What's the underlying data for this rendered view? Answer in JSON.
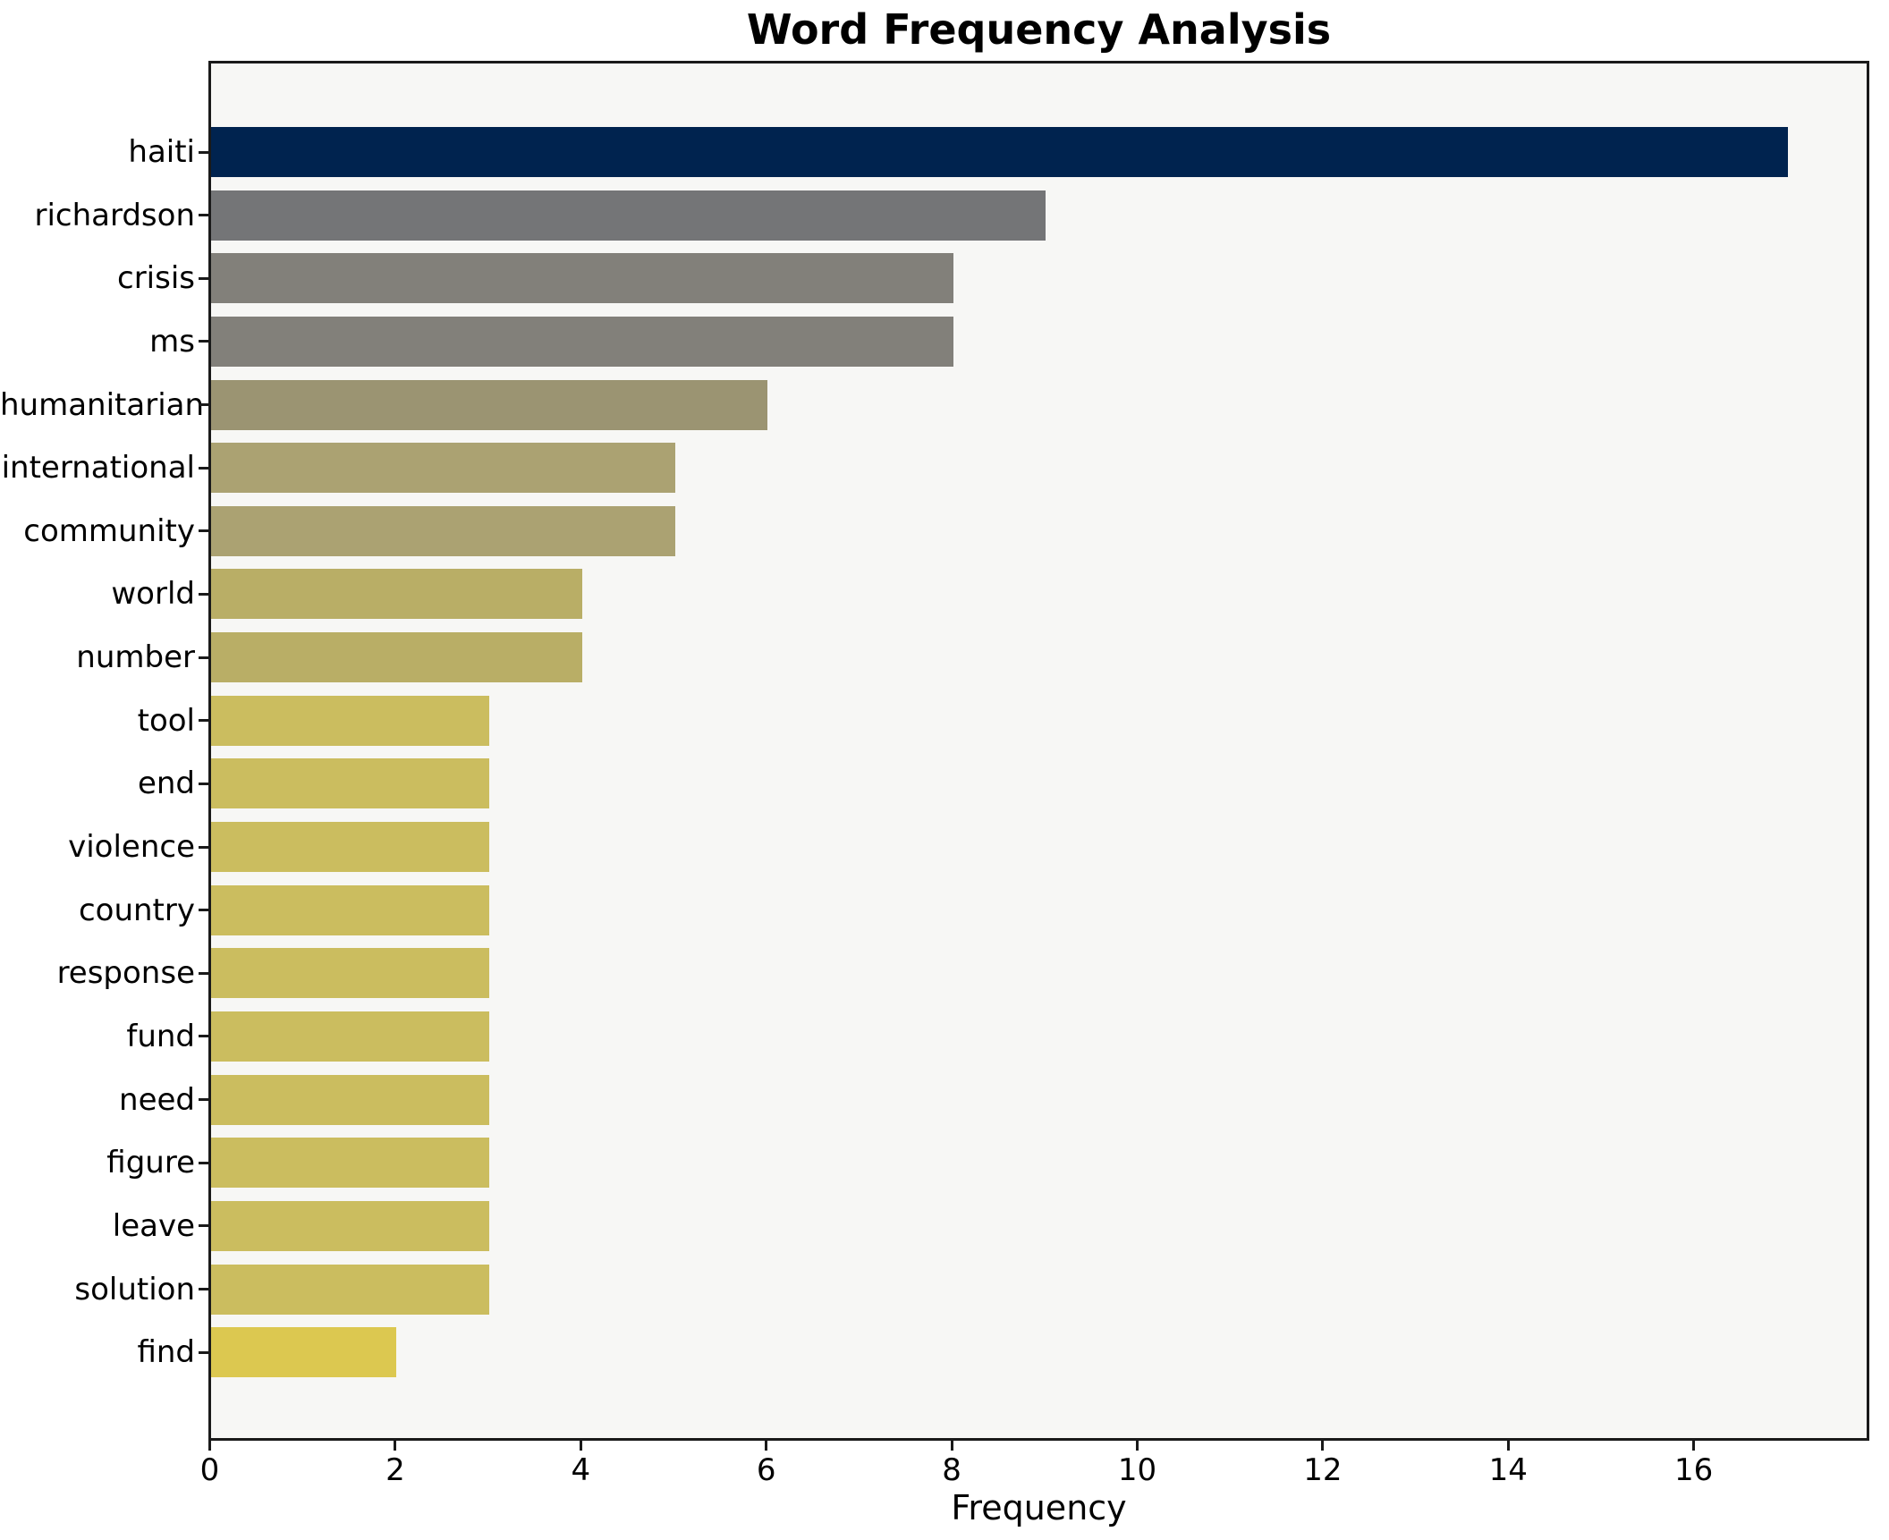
{
  "chart_data": {
    "type": "bar",
    "orientation": "horizontal",
    "title": "Word Frequency Analysis",
    "xlabel": "Frequency",
    "ylabel": "",
    "grid": false,
    "legend": "none",
    "xlim": [
      0,
      17.85
    ],
    "x_ticks": [
      0,
      2,
      4,
      6,
      8,
      10,
      12,
      14,
      16
    ],
    "categories": [
      "haiti",
      "richardson",
      "crisis",
      "ms",
      "humanitarian",
      "international",
      "community",
      "world",
      "number",
      "tool",
      "end",
      "violence",
      "country",
      "response",
      "fund",
      "need",
      "figure",
      "leave",
      "solution",
      "find"
    ],
    "values": [
      17,
      9,
      8,
      8,
      6,
      5,
      5,
      4,
      4,
      3,
      3,
      3,
      3,
      3,
      3,
      3,
      3,
      3,
      3,
      2
    ],
    "bar_colors": [
      "#00234f",
      "#747577",
      "#82807a",
      "#82807a",
      "#9b9472",
      "#aba272",
      "#aba272",
      "#b9ae66",
      "#b9ae66",
      "#cbbd5f",
      "#cbbd5f",
      "#cbbd5f",
      "#cbbd5f",
      "#cbbd5f",
      "#cbbd5f",
      "#cbbd5f",
      "#cbbd5f",
      "#cbbd5f",
      "#cbbd5f",
      "#dcc850"
    ],
    "colors": {
      "figure_background": "#ffffff",
      "plot_background": "#f7f7f5",
      "spine": "#1a1a1a",
      "text": "#000000"
    }
  }
}
